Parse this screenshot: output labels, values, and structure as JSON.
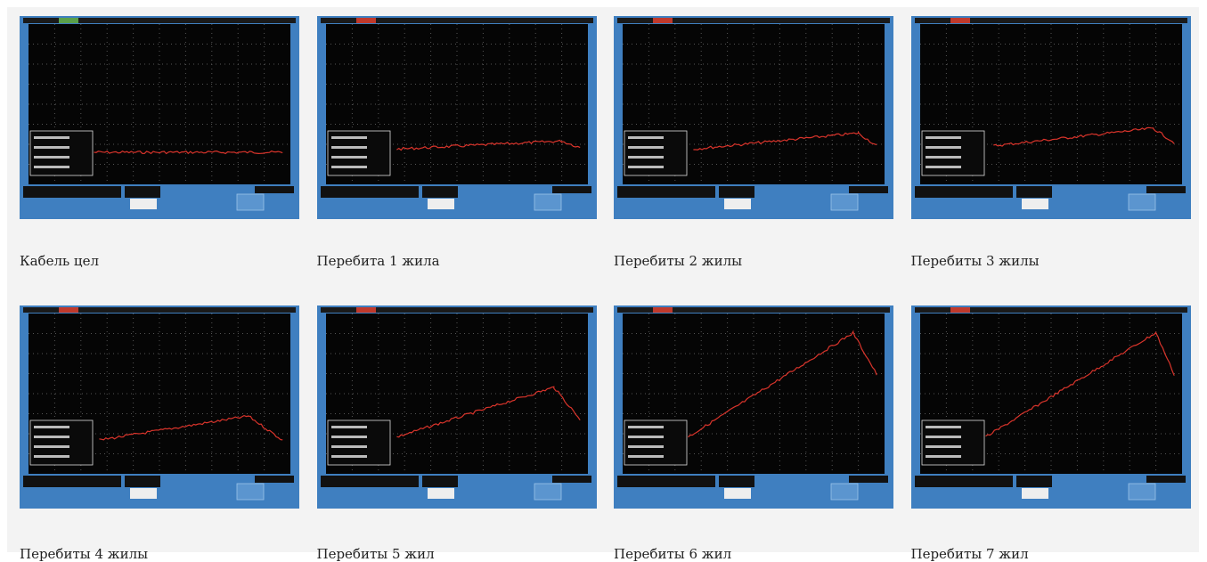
{
  "panels": [
    {
      "caption": "Кабель цел"
    },
    {
      "caption": "Перебита 1 жила"
    },
    {
      "caption": "Перебиты 2 жилы"
    },
    {
      "caption": "Перебиты 3 жилы"
    },
    {
      "caption": "Перебиты 4 жилы"
    },
    {
      "caption": "Перебиты 5 жил"
    },
    {
      "caption": "Перебиты 6 жил"
    },
    {
      "caption": "Перебиты 7 жил"
    }
  ]
}
